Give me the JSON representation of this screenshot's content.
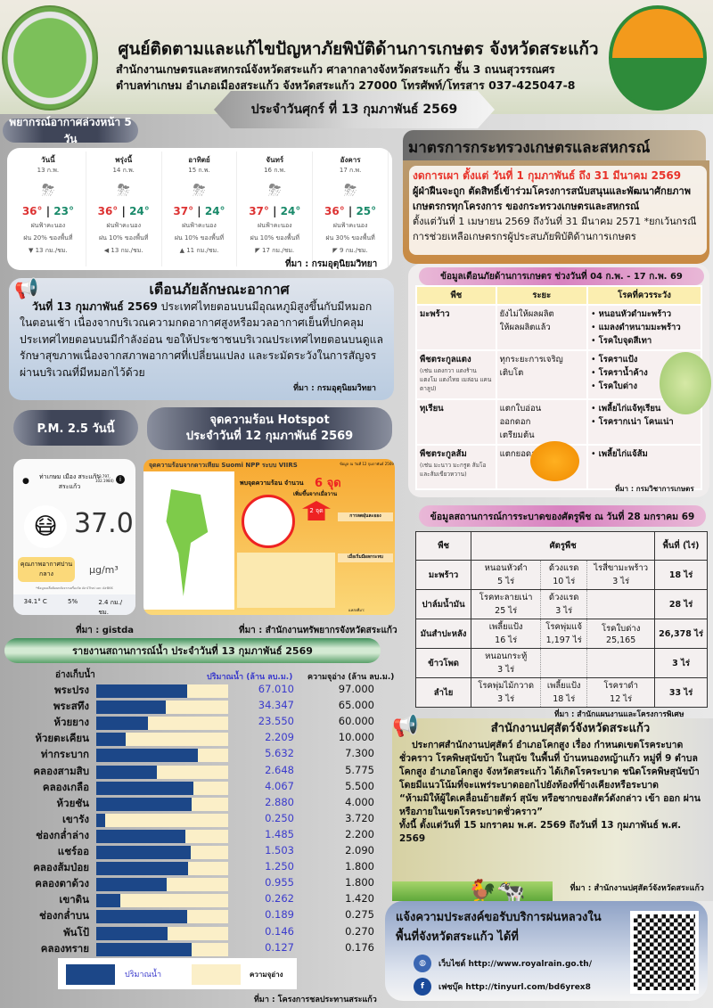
{
  "header": {
    "title": "ศูนย์ติดตามและแก้ไขปัญหาภัยพิบัติด้านการเกษตร จังหวัดสระแก้ว",
    "address_line1": "สำนักงานเกษตรและสหกรณ์จังหวัดสระแก้ว ศาลากลางจังหวัดสระแก้ว ชั้น 3 ถนนสุวรรณศร",
    "address_line2": "ตำบลท่าเกษม อำเภอเมืองสระแก้ว จังหวัดสระแก้ว 27000 โทรศัพท์/โทรสาร 037-425047-8",
    "date": "ประจำวันศุกร์ ที่ 13 กุมภาพันธ์ 2569",
    "logo_left_text": "กระทรวงเกษตรและสหกรณ์ MINISTRY OF AGRICULTURE AND COOPERATIVES"
  },
  "forecast": {
    "title": "พยากรณ์อากาศล่วงหน้า 5 วัน",
    "source": "ที่มา : กรมอุตุนิยมวิทยา",
    "days": [
      {
        "name": "วันนี้",
        "date": "13 ก.พ.",
        "hi": "36°",
        "lo": "23°",
        "cond": "ฝนฟ้าคะนอง",
        "rain": "ฝน 20% ของพื้นที่",
        "wind": "▼ 13 กม./ชม.",
        "icon": "thunderstorm-icon"
      },
      {
        "name": "พรุ่งนี้",
        "date": "14 ก.พ.",
        "hi": "36°",
        "lo": "24°",
        "cond": "ฝนฟ้าคะนอง",
        "rain": "ฝน 10% ของพื้นที่",
        "wind": "◀ 13 กม./ชม.",
        "icon": "thunderstorm-icon"
      },
      {
        "name": "อาทิตย์",
        "date": "15 ก.พ.",
        "hi": "37°",
        "lo": "24°",
        "cond": "ฝนฟ้าคะนอง",
        "rain": "ฝน 10% ของพื้นที่",
        "wind": "▲ 11 กม./ชม.",
        "icon": "thunderstorm-icon"
      },
      {
        "name": "จันทร์",
        "date": "16 ก.พ.",
        "hi": "37°",
        "lo": "24°",
        "cond": "ฝนฟ้าคะนอง",
        "rain": "ฝน 10% ของพื้นที่",
        "wind": "◤ 17 กม./ชม.",
        "icon": "thunderstorm-icon"
      },
      {
        "name": "อังคาร",
        "date": "17 ก.พ.",
        "hi": "36°",
        "lo": "25°",
        "cond": "ฝนฟ้าคะนอง",
        "rain": "ฝน 30% ของพื้นที่",
        "wind": "◤ 9 กม./ชม.",
        "icon": "thunderstorm-icon"
      }
    ]
  },
  "measures": {
    "title": "มาตรการกระทรวงเกษตรและสหกรณ์",
    "line1": "งดการเผา ตั้งแต่ วันที่ 1 กุมภาพันธ์ ถึง 31 มีนาคม 2569",
    "line2": "ผู้ฝ่าฝืนจะถูก ตัดสิทธิ์เข้าร่วมโครงการสนับสนุนและพัฒนาศักยภาพเกษตรกรทุกโครงการ ของกระทรวงเกษตรและสหกรณ์",
    "line3": "ตั้งแต่วันที่ 1 เมษายน 2569 ถึงวันที่ 31 มีนาคม 2571 *ยกเว้นกรณีการช่วยเหลือเกษตรกรผู้ประสบภัยพิบัติด้านการเกษตร",
    "accent": "#e8332a"
  },
  "alert": {
    "title": "ข้อมูลเตือนภัยด้านการเกษตร ช่วงวันที่ 04 ก.พ. - 17 ก.พ. 69",
    "headers": [
      "พืช",
      "ระยะ",
      "โรคที่ควรระวัง"
    ],
    "source": "ที่มา : กรมวิชาการเกษตร",
    "rows": [
      {
        "crop": "มะพร้าว",
        "note": "",
        "stage": "ยังไม่ให้ผลผลิต\nให้ผลผลิตแล้ว",
        "diseases": [
          "หนอนหัวดำมะพร้าว",
          "แมลงดำหนามมะพร้าว",
          "โรคใบจุดสีเทา"
        ]
      },
      {
        "crop": "พืชตระกูลแตง",
        "note": "(เช่น แตงกวา แตงร้าน แตงโม แตงไทย เมล่อน แคนตาลูป)",
        "stage": "ทุกระยะการเจริญเติบโต",
        "diseases": [
          "โรคราแป้ง",
          "โรคราน้ำค้าง",
          "โรคใบด่าง"
        ]
      },
      {
        "crop": "ทุเรียน",
        "note": "",
        "stage": "แตกใบอ่อน\nออกดอก\nเตรียมต้น",
        "diseases": [
          "เพลี้ยไก่แจ้ทุเรียน",
          "โรครากเน่า โคนเน่า"
        ]
      },
      {
        "crop": "พืชตระกูลส้ม",
        "note": "(เช่น มะนาว มะกรูด ส้มโอ และส้มเขียวหวาน)",
        "stage": "แตกยอดอ่อน",
        "diseases": [
          "เพลี้ยไก่แจ้ส้ม"
        ]
      }
    ]
  },
  "warning": {
    "title": "เตือนภัยลักษณะอากาศ",
    "lead": "วันที่ 13 กุมภาพันธ์ 2569",
    "body": " ประเทศไทยตอนบนมีอุณหภูมิสูงขึ้นกับมีหมอกในตอนเช้า เนื่องจากบริเวณความกดอากาศสูงหรือมวลอากาศเย็นที่ปกคลุมประเทศไทยตอนบนมีกำลังอ่อน ขอให้ประชาชนบริเวณประเทศไทยตอนบนดูแลรักษาสุขภาพเนื่องจากสภาพอากาศที่เปลี่ยนแปลง และระมัดระวังในการสัญจรผ่านบริเวณที่มีหมอกไว้ด้วย",
    "source": "ที่มา : กรมอุตุนิยมวิทยา"
  },
  "pm25": {
    "title": "P.M. 2.5 วันนี้",
    "location": "ท่าเกษม เมือง สระแก้ว สระแก้ว",
    "coords": "(13.797, 102.1984)",
    "value": "37.0",
    "unit": "µg/m³",
    "quality": "คุณภาพอากาศปานกลาง",
    "quality_color": "#fbd97a",
    "note": "*ข้อมูลเฉลี่ยย้อนหลังจากเครื่องวัด Air4Thai และ AirBKK",
    "temp": "34.1° C",
    "humidity": "5%",
    "wind": "2.4 กม./ชม.",
    "source": "ที่มา : gistda"
  },
  "hotspot": {
    "title": "จุดความร้อน Hotspot",
    "date": "ประจำวันที่ 12 กุมภาพันธ์ 2569",
    "image_title": "จุดความร้อนจากดาวเทียม Suomi NPP ระบบ VIIRS",
    "image_date": "ข้อมูล ณ วันที่ 12 กุมภาพันธ์ 2569",
    "found": "พบจุดความร้อน จำนวน",
    "count": "6 จุด",
    "increase": "เพิ่มขึ้นจากเมื่อวาน",
    "increase_count": "2 จุด",
    "no_burn": "การลดฝุ่นละออง",
    "protect": "เมื่อเริ่มมีผลกระทบ",
    "credit": "แหล่งที่มา:",
    "source": "ที่มา : สำนักงานทรัพยากรจังหวัดสระแก้ว"
  },
  "water": {
    "title": "รายงานสถานการณ์น้ำ ประจำวันที่ 13 กุมภาพันธ์ 2569",
    "col_name": "อ่างเก็บน้ำ",
    "col_vol": "ปริมาณน้ำ (ล้าน ลบ.ม.)",
    "col_cap": "ความจุอ่าง (ล้าน ลบ.ม.)",
    "legend_vol": "ปริมาณน้ำ",
    "legend_cap": "ความจุอ่าง",
    "vol_color": "#1c4788",
    "cap_color": "#fbefc8",
    "source": "ที่มา : โครงการชลประทานสระแก้ว",
    "rows": [
      {
        "name": "พระปรง",
        "vol": "67.010",
        "cap": "97.000"
      },
      {
        "name": "พระสทึง",
        "vol": "34.347",
        "cap": "65.000"
      },
      {
        "name": "ห้วยยาง",
        "vol": "23.550",
        "cap": "60.000"
      },
      {
        "name": "ห้วยตะเคียน",
        "vol": "2.209",
        "cap": "10.000"
      },
      {
        "name": "ท่ากระบาก",
        "vol": "5.632",
        "cap": "7.300"
      },
      {
        "name": "คลองสามสิบ",
        "vol": "2.648",
        "cap": "5.775"
      },
      {
        "name": "คลองเกลือ",
        "vol": "4.067",
        "cap": "5.500"
      },
      {
        "name": "ห้วยชัน",
        "vol": "2.880",
        "cap": "4.000"
      },
      {
        "name": "เขารัง",
        "vol": "0.250",
        "cap": "3.720"
      },
      {
        "name": "ช่องกล่ำล่าง",
        "vol": "1.485",
        "cap": "2.200"
      },
      {
        "name": "แชร์ออ",
        "vol": "1.503",
        "cap": "2.090"
      },
      {
        "name": "คลองส้มป่อย",
        "vol": "1.250",
        "cap": "1.800"
      },
      {
        "name": "คลองตาด้วง",
        "vol": "0.955",
        "cap": "1.800"
      },
      {
        "name": "เขาดิน",
        "vol": "0.262",
        "cap": "1.420"
      },
      {
        "name": "ช่องกล่ำบน",
        "vol": "0.189",
        "cap": "0.275"
      },
      {
        "name": "พันโป้",
        "vol": "0.146",
        "cap": "0.270"
      },
      {
        "name": "คลองทราย",
        "vol": "0.127",
        "cap": "0.176"
      }
    ]
  },
  "epidemic": {
    "title": "ข้อมูลสถานการณ์การระบาดของศัตรูพืช ณ วันที่ 28 มกราคม 69",
    "headers": [
      "พืช",
      "ศัตรูพืช",
      "พื้นที่ (ไร่)"
    ],
    "source": "ที่มา : สำนักแผนงานและโครงการพิเศษ",
    "rows": [
      {
        "crop": "มะพร้าว",
        "pests": [
          [
            "หนอนหัวดำ",
            "5 ไร่"
          ],
          [
            "ด้วงแรด",
            "10 ไร่"
          ],
          [
            "ไรสี่ขามะพร้าว",
            "3 ไร่"
          ]
        ],
        "area": "18 ไร่"
      },
      {
        "crop": "ปาล์มน้ำมัน",
        "pests": [
          [
            "โรคทะลายเน่า",
            "25 ไร่"
          ],
          [
            "ด้วงแรด",
            "3 ไร่"
          ],
          [
            "",
            ""
          ]
        ],
        "area": "28 ไร่"
      },
      {
        "crop": "มันสำปะหลัง",
        "pests": [
          [
            "เพลี้ยแป้ง",
            "16 ไร่"
          ],
          [
            "โรคพุ่มแจ้",
            "1,197 ไร่"
          ],
          [
            "โรคใบด่าง",
            "25,165"
          ]
        ],
        "area": "26,378 ไร่"
      },
      {
        "crop": "ข้าวโพด",
        "pests": [
          [
            "หนอนกระทู้",
            "3 ไร่"
          ],
          [
            "",
            ""
          ],
          [
            "",
            ""
          ]
        ],
        "area": "3 ไร่"
      },
      {
        "crop": "ลำไย",
        "pests": [
          [
            "โรคพุ่มไม้กวาด",
            "3 ไร่"
          ],
          [
            "เพลี้ยแป้ง",
            "18 ไร่"
          ],
          [
            "โรคราดำ",
            "12 ไร่"
          ]
        ],
        "area": "33 ไร่"
      }
    ]
  },
  "livestock": {
    "title": "สำนักงานปศุสัตว์จังหวัดสระแก้ว",
    "body": "ประกาศสำนักงานปศุสัตว์ อำเภอโคกสูง เรื่อง กำหนดเขตโรคระบาดชั่วคราว โรคพิษสุนัขบ้า ในสุนัข ในพื้นที่ บ้านหนองหญ้าแก้ว หมู่ที่ 9 ตำบลโคกสูง อำเภอโคกสูง จังหวัดสระแก้ว ได้เกิดโรคระบาด ชนิดโรคพิษสุนัขบ้า โดยมีแนวโน้มที่จะแพร่ระบาดออกไปยังท้องที่ข้างเคียงหรือระบาด",
    "quote": "“ห้ามมิให้ผู้ใดเคลื่อนย้ายสัตว์ สุนัข หรือซากของสัตว์ดังกล่าว เข้า ออก ผ่าน หรือภายในเขตโรคระบาดชั่วคราว”",
    "period": "ทั้งนี้ ตั้งแต่วันที่ 15 มกราคม พ.ศ. 2569 ถึงวันที่ 13 กุมภาพันธ์ พ.ศ. 2569",
    "source": "ที่มา : สำนักงานปศุสัตว์จังหวัดสระแก้ว"
  },
  "royalrain": {
    "title": "แจ้งความประสงค์ขอรับบริการฝนหลวงในพื้นที่จังหวัดสระแก้ว ได้ที่",
    "website": "เว็บไซต์ http://www.royalrain.go.th/",
    "facebook": "เฟซบุ๊ค http://tinyurl.com/bd6yrex8"
  }
}
